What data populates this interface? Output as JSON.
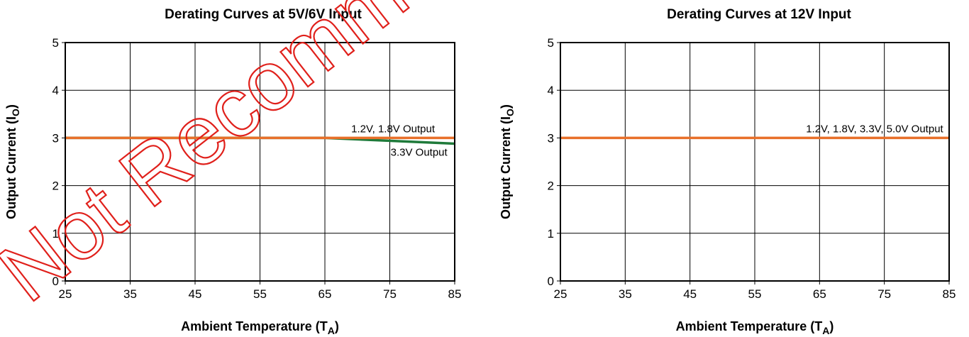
{
  "chart_data": [
    {
      "type": "line",
      "title": "Derating Curves at 5V/6V Input",
      "xlabel": "Ambient Temperature (T",
      "xlabel_sub": "A",
      "ylabel": "Output Current (I",
      "ylabel_sub": "O",
      "xlim": [
        25,
        85
      ],
      "ylim": [
        0,
        5
      ],
      "xticks": [
        25,
        35,
        45,
        55,
        65,
        75,
        85
      ],
      "yticks": [
        0,
        1,
        2,
        3,
        4,
        5
      ],
      "grid": true,
      "series": [
        {
          "color": "#e8702a",
          "x": [
            25,
            65,
            85
          ],
          "y": [
            3.0,
            3.0,
            3.0
          ]
        },
        {
          "color": "#1f7a3a",
          "x": [
            25,
            65,
            85
          ],
          "y": [
            3.0,
            3.0,
            2.88
          ]
        }
      ],
      "annotations": [
        {
          "text": "1.2V, 1.8V Output",
          "x": 75.5,
          "y": 3.12
        },
        {
          "text": "3.3V Output",
          "x": 79.5,
          "y": 2.63
        }
      ]
    },
    {
      "type": "line",
      "title": "Derating Curves at 12V Input",
      "xlabel": "Ambient Temperature (T",
      "xlabel_sub": "A",
      "ylabel": "Output Current (I",
      "ylabel_sub": "O",
      "xlim": [
        25,
        85
      ],
      "ylim": [
        0,
        5
      ],
      "xticks": [
        25,
        35,
        45,
        55,
        65,
        75,
        85
      ],
      "yticks": [
        0,
        1,
        2,
        3,
        4,
        5
      ],
      "grid": true,
      "series": [
        {
          "color": "#e8702a",
          "x": [
            25,
            85
          ],
          "y": [
            3.0,
            3.0
          ]
        }
      ],
      "annotations": [
        {
          "text": "1.2V, 1.8V, 3.3V, 5.0V Output",
          "x": 73.5,
          "y": 3.12
        }
      ]
    }
  ],
  "watermark": {
    "text": "Not Recommended",
    "color": "#e0201b"
  }
}
